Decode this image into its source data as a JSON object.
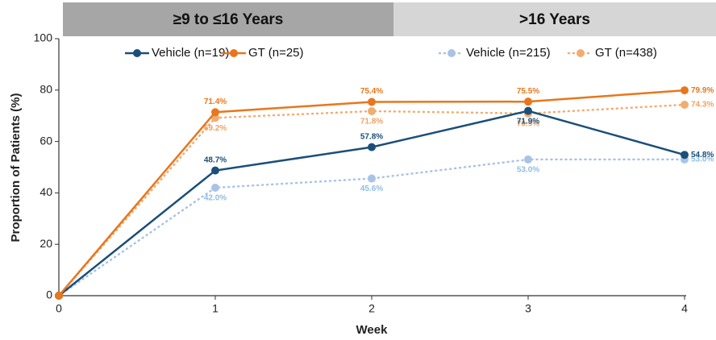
{
  "chart_data": {
    "type": "line",
    "panels": [
      "≥9 to ≤16 Years",
      ">16 Years"
    ],
    "x_label": "Week",
    "y_label": "Proportion of Patients (%)",
    "x": [
      0,
      1,
      2,
      3,
      4
    ],
    "xlim": [
      0,
      4
    ],
    "xticks": [
      0,
      1,
      2,
      3,
      4
    ],
    "ylim": [
      0,
      100
    ],
    "yticks": [
      0,
      20,
      40,
      60,
      80,
      100
    ],
    "series": [
      {
        "name": "Vehicle (n=19)",
        "color": "#1a4f7a",
        "style": "solid",
        "values": [
          0,
          48.7,
          57.8,
          71.9,
          54.8
        ],
        "value_labels": [
          null,
          "48.7%",
          "57.8%",
          "71.9%",
          "54.8%"
        ]
      },
      {
        "name": "GT (n=25)",
        "color": "#e9761c",
        "style": "solid",
        "values": [
          0,
          71.4,
          75.4,
          75.5,
          79.9
        ],
        "value_labels": [
          null,
          "71.4%",
          "75.4%",
          "75.5%",
          "79.9%"
        ]
      },
      {
        "name": "Vehicle (n=215)",
        "color": "#a8c3e6",
        "style": "dotted",
        "values": [
          0,
          42.0,
          45.6,
          53.0,
          53.0
        ],
        "value_labels": [
          null,
          "42.0%",
          "45.6%",
          "53.0%",
          "53.0%"
        ]
      },
      {
        "name": "GT (n=438)",
        "color": "#f3ac70",
        "style": "dotted",
        "values": [
          0,
          69.2,
          71.8,
          70.9,
          74.3
        ],
        "value_labels": [
          null,
          "69.2%",
          "71.8%",
          "70.9%",
          "74.3%"
        ]
      }
    ]
  }
}
